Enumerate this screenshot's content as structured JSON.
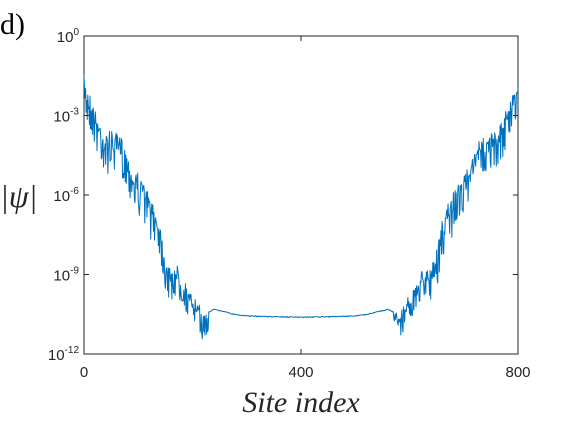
{
  "panel_label": "d)",
  "chart_data": {
    "type": "line",
    "xlabel": "Site index",
    "ylabel": "|ψ|",
    "xlim": [
      0,
      800
    ],
    "ylim": [
      1e-12,
      1
    ],
    "yscale": "log",
    "xticks": [
      0,
      400,
      800
    ],
    "xtick_labels": [
      "0",
      "400",
      "800"
    ],
    "yticks": [
      -12,
      -9,
      -6,
      -3,
      0
    ],
    "ytick_labels": [
      {
        "base": "10",
        "exp": "-12"
      },
      {
        "base": "10",
        "exp": "-9"
      },
      {
        "base": "10",
        "exp": "-6"
      },
      {
        "base": "10",
        "exp": "-3"
      },
      {
        "base": "10",
        "exp": "0"
      }
    ],
    "grid": false,
    "series_color": "#0072BD",
    "series": [
      {
        "log10_values_at_x": [
          [
            0,
            -1.6
          ],
          [
            10,
            -2.1
          ],
          [
            20,
            -2.7
          ],
          [
            30,
            -3.2
          ],
          [
            40,
            -3.8
          ],
          [
            50,
            -3.5
          ],
          [
            60,
            -3.8
          ],
          [
            70,
            -3.9
          ],
          [
            80,
            -4.4
          ],
          [
            90,
            -5.0
          ],
          [
            100,
            -5.2
          ],
          [
            110,
            -5.5
          ],
          [
            120,
            -6.0
          ],
          [
            130,
            -6.4
          ],
          [
            140,
            -7.0
          ],
          [
            150,
            -8.2
          ],
          [
            160,
            -8.8
          ],
          [
            170,
            -8.6
          ],
          [
            180,
            -9.0
          ],
          [
            190,
            -9.5
          ],
          [
            200,
            -9.8
          ],
          [
            210,
            -10.1
          ],
          [
            220,
            -10.5
          ],
          [
            240,
            -10.3
          ],
          [
            260,
            -10.4
          ],
          [
            280,
            -10.5
          ],
          [
            300,
            -10.55
          ],
          [
            350,
            -10.58
          ],
          [
            400,
            -10.6
          ],
          [
            450,
            -10.58
          ],
          [
            500,
            -10.55
          ],
          [
            520,
            -10.5
          ],
          [
            540,
            -10.4
          ],
          [
            560,
            -10.3
          ],
          [
            580,
            -10.5
          ],
          [
            590,
            -10.1
          ],
          [
            600,
            -9.8
          ],
          [
            610,
            -9.5
          ],
          [
            620,
            -9.0
          ],
          [
            630,
            -8.6
          ],
          [
            640,
            -8.8
          ],
          [
            650,
            -8.2
          ],
          [
            660,
            -7.0
          ],
          [
            670,
            -6.4
          ],
          [
            680,
            -6.0
          ],
          [
            690,
            -5.5
          ],
          [
            700,
            -5.2
          ],
          [
            710,
            -5.0
          ],
          [
            720,
            -4.4
          ],
          [
            730,
            -3.9
          ],
          [
            740,
            -3.8
          ],
          [
            750,
            -3.5
          ],
          [
            760,
            -3.8
          ],
          [
            770,
            -3.2
          ],
          [
            780,
            -2.7
          ],
          [
            790,
            -2.1
          ],
          [
            800,
            -1.6
          ]
        ]
      }
    ]
  }
}
